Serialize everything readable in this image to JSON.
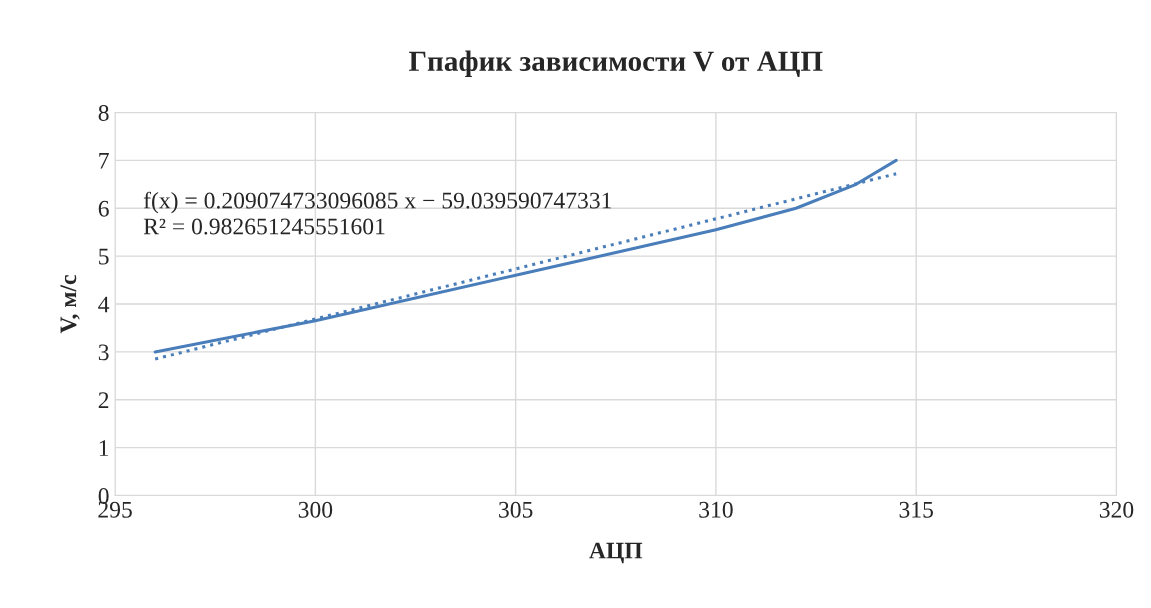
{
  "chart_data": {
    "type": "line",
    "title": "Гпафик зависимости V от АЦП",
    "xlabel": "АЦП",
    "ylabel": "V, м/с",
    "xlim": [
      295,
      320
    ],
    "xticks": [
      295,
      300,
      305,
      310,
      315,
      320
    ],
    "ylim": [
      0,
      8
    ],
    "yticks": [
      0,
      1,
      2,
      3,
      4,
      5,
      6,
      7,
      8
    ],
    "grid": true,
    "legend": false,
    "marker": "none",
    "series": [
      {
        "color": "#4a7ebb",
        "line_style": "solid",
        "x": [
          296,
          300,
          305,
          310,
          312,
          313.5,
          314.5
        ],
        "values": [
          3.0,
          3.65,
          4.6,
          5.55,
          6.0,
          6.5,
          7.0
        ]
      },
      {
        "color": "#4a7ebb",
        "line_style": "dotted",
        "x": [
          296,
          314.5
        ],
        "values": [
          2.85,
          6.72
        ]
      }
    ],
    "annotations": [
      "f(x) = 0.209074733096085 x − 59.039590747331",
      "R² = 0.982651245551601"
    ]
  }
}
